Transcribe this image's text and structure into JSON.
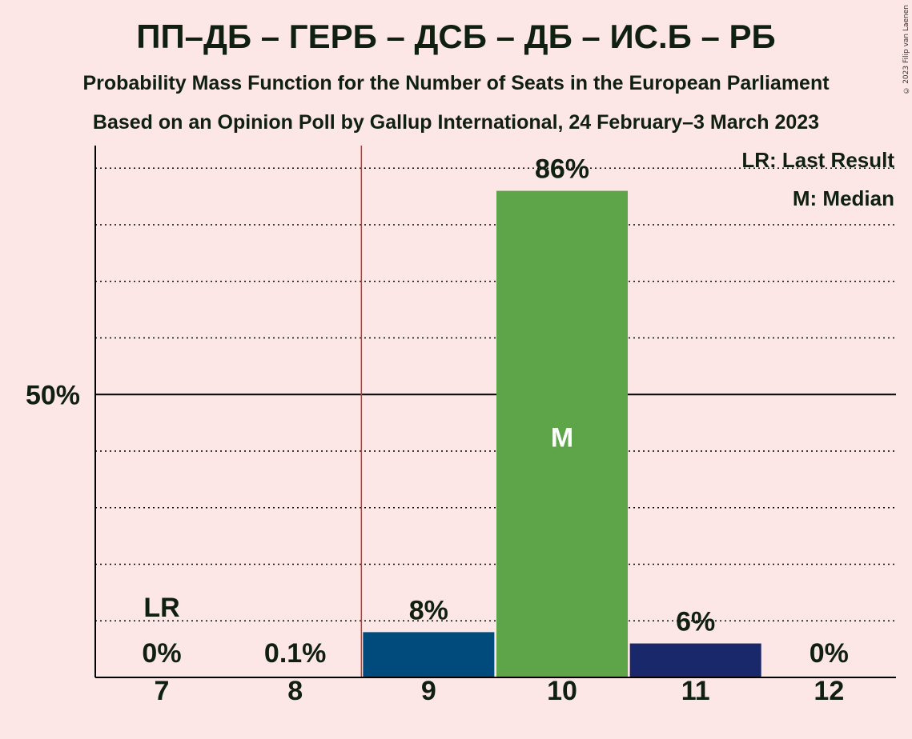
{
  "title": "ПП–ДБ – ГЕРБ – ДСБ – ДБ – ИС.Б – РБ",
  "subtitle1": "Probability Mass Function for the Number of Seats in the European Parliament",
  "subtitle2": "Based on an Opinion Poll by Gallup International, 24 February–3 March 2023",
  "copyright": "© 2023 Filip van Laenen",
  "legend": {
    "last_result": "LR: Last Result",
    "median": "M: Median"
  },
  "colors": {
    "background": "#fde6e6",
    "bar_9": "#004a7c",
    "bar_10": "#5da548",
    "bar_11": "#18286a",
    "last_result_line": "#c0392b"
  },
  "chart_data": {
    "type": "bar",
    "categories": [
      "7",
      "8",
      "9",
      "10",
      "11",
      "12"
    ],
    "values": [
      0,
      0.1,
      8,
      86,
      6,
      0
    ],
    "value_labels": [
      "0%",
      "0.1%",
      "8%",
      "86%",
      "6%",
      "0%"
    ],
    "ylabel_tick": "50%",
    "ylim": [
      0,
      94
    ],
    "last_result": {
      "category": "7",
      "label": "LR"
    },
    "median": {
      "category": "10",
      "label": "M"
    },
    "grid": "dotted every 10%"
  }
}
